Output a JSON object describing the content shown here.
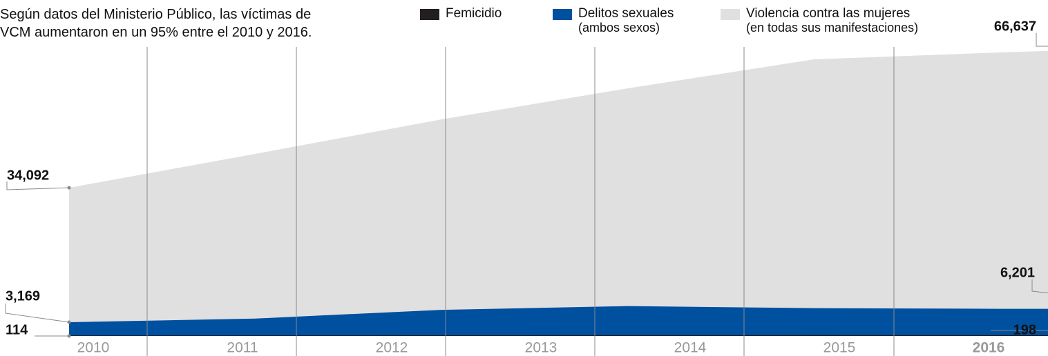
{
  "chart_data": {
    "type": "area",
    "title": "Según datos del Ministerio Público, las víctimas de VCM aumentaron en un 95% entre el 2010 y 2016.",
    "categories": [
      "2010",
      "2011",
      "2012",
      "2013",
      "2014",
      "2015",
      "2016"
    ],
    "series": [
      {
        "name": "Violencia contra las mujeres",
        "subname": "(en todas sus manifestaciones)",
        "color": "#e0e0e0",
        "values": [
          34092,
          41886,
          49819,
          56959,
          63623,
          65209,
          66637
        ],
        "value_labels": [
          "34,092",
          null,
          null,
          null,
          null,
          null,
          "66,637"
        ]
      },
      {
        "name": "Delitos sexuales",
        "subname": "(ambos sexos)",
        "color": "#0050a0",
        "values": [
          3169,
          4011,
          6017,
          6876,
          6399,
          6255,
          6201
        ],
        "value_labels": [
          "3,169",
          null,
          null,
          null,
          null,
          null,
          "6,201"
        ]
      },
      {
        "name": "Femicidio",
        "color": "#231f20",
        "values": [
          114,
          130,
          150,
          170,
          190,
          185,
          198
        ]
      }
    ]
  }
}
